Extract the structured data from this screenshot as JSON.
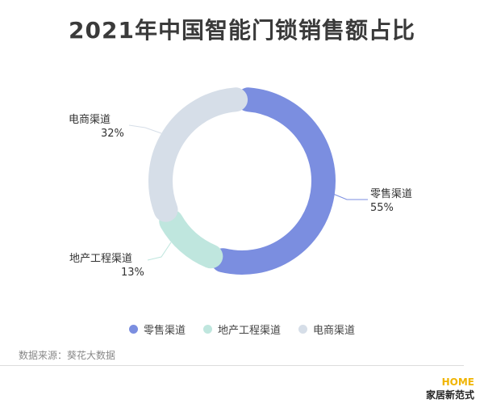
{
  "title": "2021年中国智能门锁销售额占比",
  "chart_data": {
    "type": "pie",
    "donut": true,
    "title": "2021年中国智能门锁销售额占比",
    "categories": [
      "零售渠道",
      "地产工程渠道",
      "电商渠道"
    ],
    "values": [
      55,
      13,
      32
    ],
    "labels": [
      "55%",
      "13%",
      "32%"
    ],
    "colors": [
      "#7b8ee0",
      "#bfe6de",
      "#d6dee8"
    ],
    "legend": "bottom"
  },
  "source": "数据来源：葵花大数据",
  "logo": {
    "top": "HOME",
    "bottom": "家居新范式"
  }
}
